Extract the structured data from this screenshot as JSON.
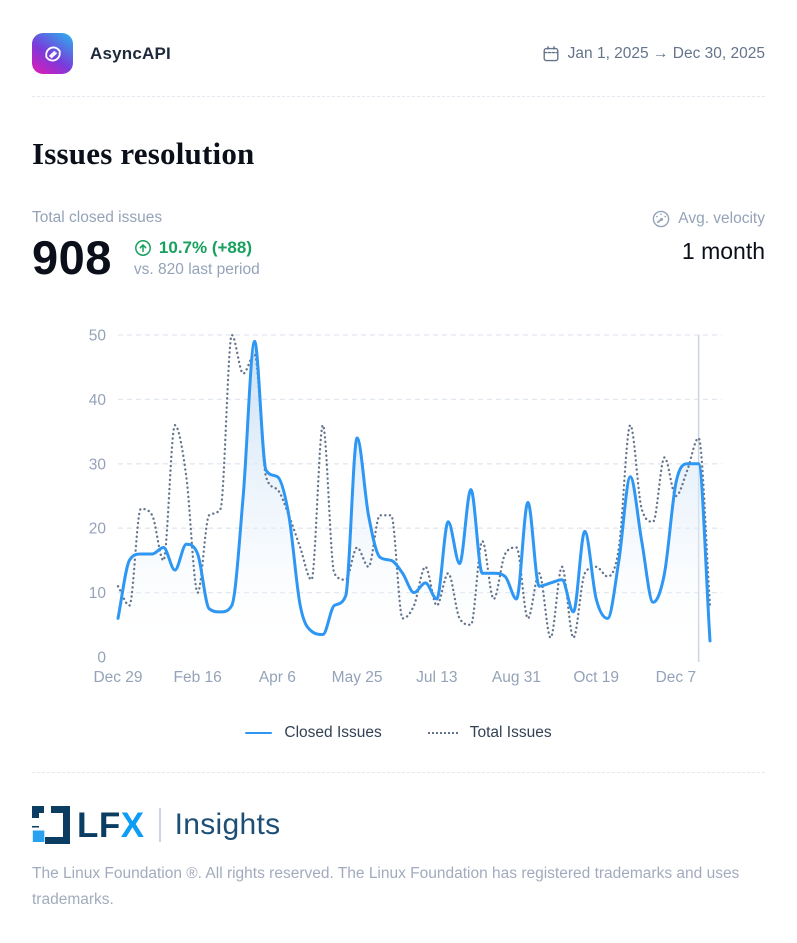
{
  "header": {
    "org_name": "AsyncAPI",
    "date_range": "Jan 1, 2025 → Dec 30, 2025"
  },
  "title": "Issues resolution",
  "stats": {
    "label": "Total closed issues",
    "value": "908",
    "delta": "10.7% (+88)",
    "comparison": "vs. 820 last period",
    "velocity_label": "Avg. velocity",
    "velocity_value": "1 month"
  },
  "legend": {
    "closed": "Closed Issues",
    "total": "Total Issues"
  },
  "footer": {
    "brand_lf": "LF",
    "brand_x": "X",
    "brand_product": "Insights",
    "copyright": "The Linux Foundation ®. All rights reserved. The Linux Foundation has registered trademarks and uses trademarks."
  },
  "colors": {
    "accent_blue": "#2e96f3",
    "dotted_gray": "#64748b",
    "grid_line": "#e2e8f0",
    "axis_text": "#94a3b8",
    "delta_green": "#17a05e",
    "marker_line": "#cbd5e1",
    "area_top": "rgba(196,220,243,0.95)",
    "area_mid": "rgba(228,239,250,0.45)",
    "area_bottom": "rgba(255,255,255,0)"
  },
  "chart_data": {
    "type": "line",
    "x_unit": "week",
    "grid": "horizontal-dashed",
    "legend_position": "bottom",
    "ylim": [
      0,
      50
    ],
    "y_ticks": [
      0,
      10,
      20,
      30,
      40,
      50
    ],
    "x_tick_labels": [
      "Dec 29",
      "Feb 16",
      "Apr 6",
      "May 25",
      "Jul 13",
      "Aug 31",
      "Oct 19",
      "Dec 7"
    ],
    "x_tick_weeks": [
      0,
      7,
      14,
      21,
      28,
      35,
      42,
      49
    ],
    "annotation_vline_week": 51,
    "series": [
      {
        "name": "Closed Issues",
        "style": "solid-area",
        "color": "#2e96f3",
        "values": [
          6,
          15,
          16,
          16,
          17,
          13.5,
          17.5,
          16,
          7.5,
          7,
          8,
          25,
          49,
          29,
          28,
          22,
          8,
          4,
          3.5,
          8,
          9.5,
          34,
          22,
          15.5,
          15,
          13,
          10,
          11.5,
          9,
          21,
          14.5,
          26,
          13,
          13,
          12.5,
          9,
          24,
          11,
          11.5,
          12,
          7,
          19.5,
          9,
          6,
          15,
          28,
          18,
          8.5,
          13,
          27,
          30,
          30,
          2.5
        ]
      },
      {
        "name": "Total Issues",
        "style": "dotted",
        "color": "#64748b",
        "values": [
          11,
          8,
          23,
          22,
          15,
          36,
          28,
          10,
          22,
          23,
          50,
          44,
          47,
          28,
          26,
          22,
          17,
          12,
          36,
          13,
          12,
          17,
          14,
          22,
          22,
          6,
          8,
          14,
          8,
          13,
          6,
          5,
          18,
          9,
          16,
          17,
          6,
          13,
          3,
          14,
          3,
          13,
          14,
          12.5,
          17,
          36,
          23,
          21,
          31,
          25,
          29,
          34,
          8
        ]
      }
    ]
  }
}
